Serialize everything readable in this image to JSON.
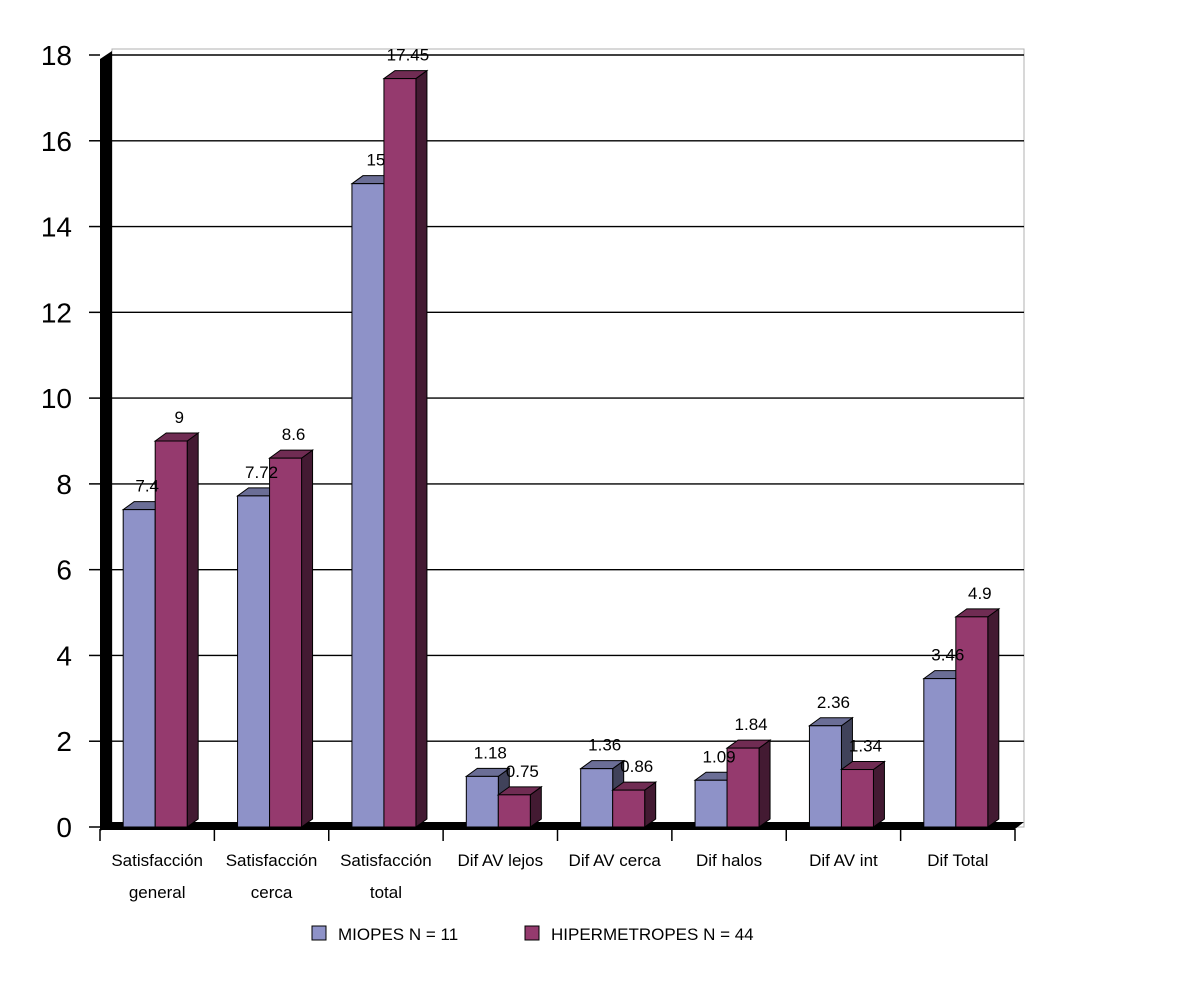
{
  "chart_data": {
    "type": "bar",
    "categories": [
      [
        "Satisfacción",
        "general"
      ],
      [
        "Satisfacción",
        "cerca"
      ],
      [
        "Satisfacción",
        "total"
      ],
      [
        "Dif AV lejos"
      ],
      [
        "Dif AV cerca"
      ],
      [
        "Dif halos"
      ],
      [
        "Dif AV int"
      ],
      [
        "Dif Total"
      ]
    ],
    "series": [
      {
        "name": "MIOPES N = 11",
        "values": [
          7.4,
          7.72,
          15,
          1.18,
          1.36,
          1.09,
          2.36,
          3.46
        ],
        "labels": [
          "7.4",
          "7.72",
          "15",
          "1.18",
          "1.36",
          "1.09",
          "2.36",
          "3.46"
        ],
        "color": "#8E92C8"
      },
      {
        "name": "HIPERMETROPES N = 44",
        "values": [
          9,
          8.6,
          17.45,
          0.75,
          0.86,
          1.84,
          1.34,
          4.9
        ],
        "labels": [
          "9",
          "8.6",
          "17.45",
          "0.75",
          "0.86",
          "1.84",
          "1.34",
          "4.9"
        ],
        "color": "#953A6E"
      }
    ],
    "yticks": [
      "0",
      "2",
      "4",
      "6",
      "8",
      "10",
      "12",
      "14",
      "16",
      "18"
    ],
    "ylim": [
      0,
      18
    ],
    "grid": true,
    "legend_position": "bottom",
    "title": "",
    "xlabel": "",
    "ylabel": ""
  }
}
